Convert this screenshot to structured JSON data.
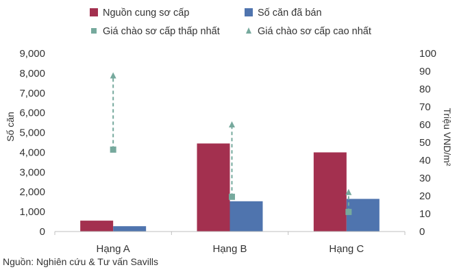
{
  "chart_data": {
    "type": "bar",
    "categories": [
      "Hạng A",
      "Hạng B",
      "Hạng C"
    ],
    "series": [
      {
        "name": "Nguồn cung sơ cấp",
        "kind": "bar",
        "axis": "left",
        "color": "#A3304F",
        "values": [
          550,
          4450,
          4000
        ]
      },
      {
        "name": "Số căn đã bán",
        "kind": "bar",
        "axis": "left",
        "color": "#4F74AE",
        "values": [
          270,
          1530,
          1650
        ]
      },
      {
        "name": "Giá chào sơ cấp thấp nhất",
        "kind": "marker",
        "marker": "square",
        "axis": "right",
        "color": "#76A99D",
        "values": [
          46,
          19.5,
          11
        ]
      },
      {
        "name": "Giá chào sơ cấp cao nhất",
        "kind": "marker",
        "marker": "triangle",
        "axis": "right",
        "color": "#76A99D",
        "values": [
          87.5,
          60,
          22
        ]
      }
    ],
    "ylabel": "Số căn",
    "y2label": "Triệu VND/m²",
    "ylim": [
      0,
      9000
    ],
    "y2lim": [
      0,
      100
    ],
    "yticks": [
      "0",
      "1,000",
      "2,000",
      "3,000",
      "4,000",
      "5,000",
      "6,000",
      "7,000",
      "8,000",
      "9,000"
    ],
    "y2ticks": [
      "0",
      "10",
      "20",
      "30",
      "40",
      "50",
      "60",
      "70",
      "80",
      "90",
      "100"
    ],
    "grid": false,
    "legend_position": "top",
    "range_lines": "dashed vertical line connecting lowest and highest price per category"
  },
  "source": "Nguồn: Nghiên cứu & Tư vấn Savills"
}
